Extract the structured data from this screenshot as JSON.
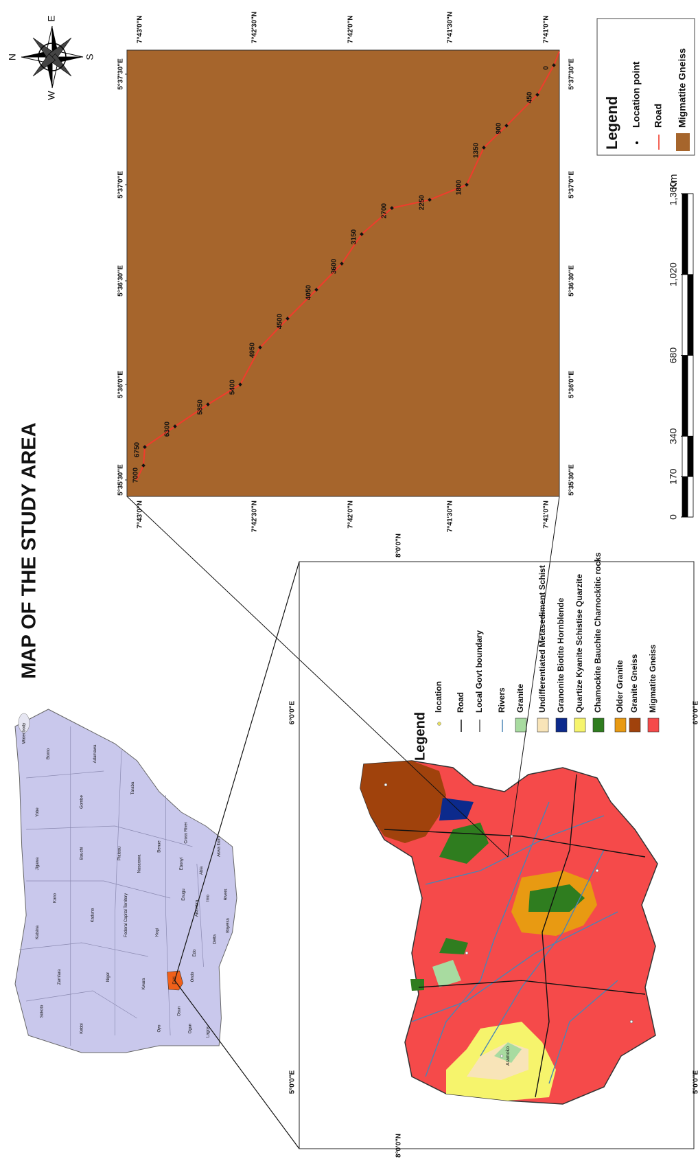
{
  "title": "MAP OF THE STUDY AREA",
  "compass": {
    "north": "N",
    "east": "E",
    "south": "S",
    "west": "W"
  },
  "detail_map": {
    "fill": "#a6652c",
    "road_color": "#f03c2c",
    "latitude_labels": [
      "7°43'0\"N",
      "7°42'30\"N",
      "7°42'0\"N",
      "7°41'30\"N",
      "7°41'0\"N"
    ],
    "longitude_labels": [
      "5°35'30\"E",
      "5°36'0\"E",
      "5°36'30\"E",
      "5°37'0\"E",
      "5°37'30\"E"
    ],
    "location_points": [
      0,
      450,
      900,
      1350,
      1800,
      2250,
      2700,
      3150,
      3600,
      4050,
      4500,
      4950,
      5400,
      5850,
      6300,
      6750,
      7000
    ]
  },
  "detail_legend": {
    "title": "Legend",
    "items": [
      {
        "label": "Location point",
        "symbol": "point",
        "color": "#000000"
      },
      {
        "label": "Road",
        "symbol": "line",
        "color": "#f03c2c"
      },
      {
        "label": "Migmatite Gneiss",
        "symbol": "patch",
        "color": "#a6652c"
      }
    ]
  },
  "scale_bar": {
    "ticks": [
      0,
      170,
      340,
      680,
      {
        "value": 1020,
        "label": "1,020"
      },
      {
        "value": 1360,
        "label": "1,360"
      }
    ],
    "unit": "Km"
  },
  "geology_map": {
    "longitude_labels": [
      "5°0'0\"E",
      "6°0'0\"E"
    ],
    "latitude_label": "8°0'0\"N",
    "place": "Aramoko",
    "legend": {
      "title": "Legend",
      "items": [
        {
          "label": "location",
          "symbol": "point",
          "color": "#e8e060"
        },
        {
          "label": "Road",
          "symbol": "line",
          "color": "#111111"
        },
        {
          "label": "Local Govt boundary",
          "symbol": "line",
          "color": "#555555"
        },
        {
          "label": "Rivers",
          "symbol": "line",
          "color": "#4a85b5"
        },
        {
          "label": "Granite",
          "symbol": "patch",
          "color": "#a8dba0"
        },
        {
          "label": "Undifferentiated Metasediment Schist",
          "symbol": "patch",
          "color": "#f8e4b8"
        },
        {
          "label": "Granonite Biotite Hornblende",
          "symbol": "patch",
          "color": "#0c2a8c"
        },
        {
          "label": "Quartize Kyanite Schistise Quarzite",
          "symbol": "patch",
          "color": "#f6f46c"
        },
        {
          "label": "Chamockite Bauchite Charnockitic rocks",
          "symbol": "patch",
          "color": "#2f7d1f"
        },
        {
          "label": "Older Granite",
          "symbol": "patch",
          "color": "#e89a12"
        },
        {
          "label": "Granite Gneiss",
          "symbol": "patch",
          "color": "#a0420c"
        },
        {
          "label": "Migmatite Gneiss",
          "symbol": "patch",
          "color": "#f54a4a"
        }
      ]
    }
  },
  "nigeria_map": {
    "fill": "#c9c8ec",
    "highlight_color": "#f0601a",
    "states": [
      "Sokoto",
      "Kebbi",
      "Zamfara",
      "Katsina",
      "Kano",
      "Jigawa",
      "Yobe",
      "Borno",
      "Water body",
      "Niger",
      "Kaduna",
      "Bauchi",
      "Gombe",
      "Adamawa",
      "Plateau",
      "Taraba",
      "Federal Capital Territory",
      "Nasarawa",
      "Kwara",
      "Oyo",
      "Osun",
      "Ekiti",
      "Ondo",
      "Kogi",
      "Benue",
      "Ogun",
      "Lagos",
      "Edo",
      "Enugu",
      "Ebonyi",
      "Cross River",
      "Anambra",
      "Delta",
      "Imo",
      "Abia",
      "Akwa Ibom",
      "Rivers",
      "Bayelsa"
    ]
  }
}
